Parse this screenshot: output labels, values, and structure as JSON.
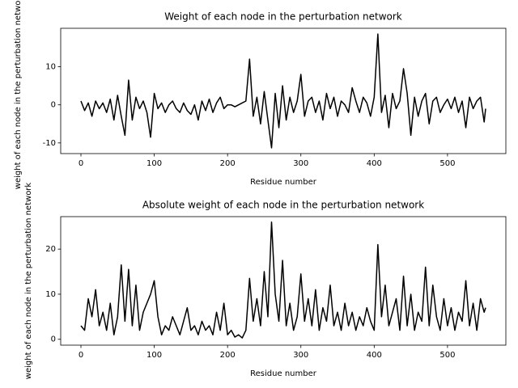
{
  "chart_data": [
    {
      "type": "line",
      "title": "Weight of each node in the perturbation network",
      "xlabel": "Residue number",
      "ylabel": "weight of each node in the perturbation network",
      "color": "#000000",
      "x": [
        0,
        5,
        10,
        15,
        20,
        25,
        30,
        35,
        40,
        45,
        50,
        55,
        60,
        65,
        70,
        75,
        80,
        85,
        90,
        95,
        100,
        105,
        110,
        115,
        120,
        125,
        130,
        135,
        140,
        145,
        150,
        155,
        160,
        165,
        170,
        175,
        180,
        185,
        190,
        195,
        200,
        205,
        210,
        215,
        220,
        225,
        230,
        235,
        240,
        245,
        250,
        255,
        260,
        265,
        270,
        275,
        280,
        285,
        290,
        295,
        300,
        305,
        310,
        315,
        320,
        325,
        330,
        335,
        340,
        345,
        350,
        355,
        360,
        365,
        370,
        375,
        380,
        385,
        390,
        395,
        400,
        405,
        410,
        415,
        420,
        425,
        430,
        435,
        440,
        445,
        450,
        455,
        460,
        465,
        470,
        475,
        480,
        485,
        490,
        495,
        500,
        505,
        510,
        515,
        520,
        525,
        530,
        535,
        540,
        545,
        550,
        552
      ],
      "values": [
        1,
        -1.5,
        0.5,
        -3,
        1,
        -1,
        0.5,
        -2,
        1.5,
        -4,
        2.5,
        -3,
        -8,
        6.5,
        -4,
        2,
        -1,
        1,
        -2,
        -8.5,
        3,
        -1,
        0.5,
        -2,
        0,
        1,
        -1,
        -2,
        0.5,
        -1.5,
        -2.5,
        0,
        -4,
        1,
        -1.5,
        1.5,
        -2,
        0.5,
        2,
        -1,
        0,
        0,
        -0.5,
        0,
        0.5,
        1,
        12,
        -3,
        2,
        -5,
        3.5,
        -4,
        -11.3,
        3,
        -6,
        5,
        -4,
        2,
        -2,
        1,
        8,
        -3,
        1,
        2,
        -2,
        1,
        -4,
        3,
        -1,
        2,
        -3,
        1,
        0,
        -2,
        4.5,
        1,
        -2,
        2,
        0.5,
        -3,
        2,
        18.6,
        -2,
        2.5,
        -6,
        3,
        -1,
        1,
        9.5,
        3,
        -8,
        2,
        -3,
        1,
        3,
        -5,
        1,
        2,
        -2,
        0,
        1.5,
        -1,
        2,
        -2,
        1,
        -6,
        2,
        -1,
        1,
        2,
        -4.5,
        -1
      ],
      "xlim": [
        -27.6,
        579.6
      ],
      "ylim": [
        -12.8,
        20.1
      ],
      "xticks": [
        0,
        100,
        200,
        300,
        400,
        500
      ],
      "yticks": [
        -10,
        0,
        10
      ]
    },
    {
      "type": "line",
      "title": "Absolute weight of each node in the perturbation network",
      "xlabel": "Residue number",
      "ylabel": "weight of each node in the perturbation network",
      "color": "#000000",
      "x": [
        0,
        5,
        10,
        15,
        20,
        25,
        30,
        35,
        40,
        45,
        50,
        55,
        60,
        65,
        70,
        75,
        80,
        85,
        90,
        95,
        100,
        105,
        110,
        115,
        120,
        125,
        130,
        135,
        140,
        145,
        150,
        155,
        160,
        165,
        170,
        175,
        180,
        185,
        190,
        195,
        200,
        205,
        210,
        215,
        220,
        225,
        230,
        235,
        240,
        245,
        250,
        255,
        260,
        265,
        270,
        275,
        280,
        285,
        290,
        295,
        300,
        305,
        310,
        315,
        320,
        325,
        330,
        335,
        340,
        345,
        350,
        355,
        360,
        365,
        370,
        375,
        380,
        385,
        390,
        395,
        400,
        405,
        410,
        415,
        420,
        425,
        430,
        435,
        440,
        445,
        450,
        455,
        460,
        465,
        470,
        475,
        480,
        485,
        490,
        495,
        500,
        505,
        510,
        515,
        520,
        525,
        530,
        535,
        540,
        545,
        550,
        552
      ],
      "values": [
        3,
        2,
        9,
        5,
        11,
        3,
        6,
        2,
        8,
        1,
        5,
        16.5,
        4,
        15.5,
        3,
        12,
        2,
        6,
        8,
        10,
        13,
        5,
        1,
        3,
        2,
        5,
        3,
        1,
        4,
        7,
        2,
        3,
        1,
        4,
        2,
        3,
        1,
        6,
        2,
        8,
        1,
        2,
        0.5,
        1,
        0.3,
        2,
        13.5,
        4,
        9,
        3,
        15,
        5,
        26,
        10,
        4,
        17.5,
        3,
        8,
        2,
        5,
        14.5,
        4,
        9,
        3,
        11,
        2,
        7,
        4,
        12,
        3,
        6,
        2,
        8,
        3,
        6,
        2,
        5,
        3,
        7,
        4,
        2,
        21,
        5,
        12,
        3,
        6,
        9,
        2,
        14,
        3,
        10,
        2,
        6,
        4,
        16,
        3,
        12,
        5,
        2,
        9,
        3,
        7,
        2,
        6,
        4,
        13,
        3,
        8,
        2,
        9,
        6,
        7
      ],
      "xlim": [
        -27.6,
        579.6
      ],
      "ylim": [
        -1.3,
        27.2
      ],
      "xticks": [
        0,
        100,
        200,
        300,
        400,
        500
      ],
      "yticks": [
        0,
        10,
        20
      ]
    }
  ]
}
